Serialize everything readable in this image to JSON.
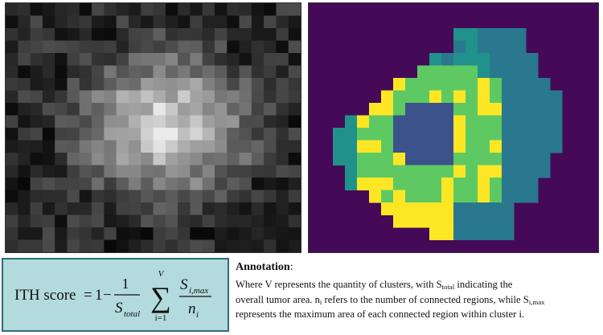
{
  "heatmap_left": {
    "colormap": "grayscale",
    "grid_rows": 20,
    "grid_cols": 24,
    "cell_label_color": "#ffffff"
  },
  "cluster_map_right": {
    "background_color": "#440a58",
    "colors": [
      "#2a788e",
      "#21918c",
      "#3b528b",
      "#5ec962",
      "#fde725",
      "#443983"
    ],
    "grid_rows": 20,
    "grid_cols": 24
  },
  "formula": {
    "lhs": "ITH score",
    "equals": "=",
    "one": "1",
    "minus": "−",
    "frac_num": "1",
    "frac_den_symbol": "S",
    "frac_den_sub": "total",
    "sigma_upper": "V",
    "sigma_lower": "i=1",
    "inner_num_symbol": "S",
    "inner_num_sub": "i,max",
    "inner_den_symbol": "n",
    "inner_den_sub": "i"
  },
  "annotation": {
    "title": "Annotation",
    "colon": ":",
    "line1_a": "Where V represents the quantity of clusters, with S",
    "line1_sub": "total",
    "line1_b": " indicating the",
    "line2_a": "overall tumor area. n",
    "line2_sub1": "i",
    "line2_b": " refers to the number of connected regions, while S",
    "line2_sub2": "i,max",
    "line3": "represents the maximum area of each connected region within cluster i."
  }
}
